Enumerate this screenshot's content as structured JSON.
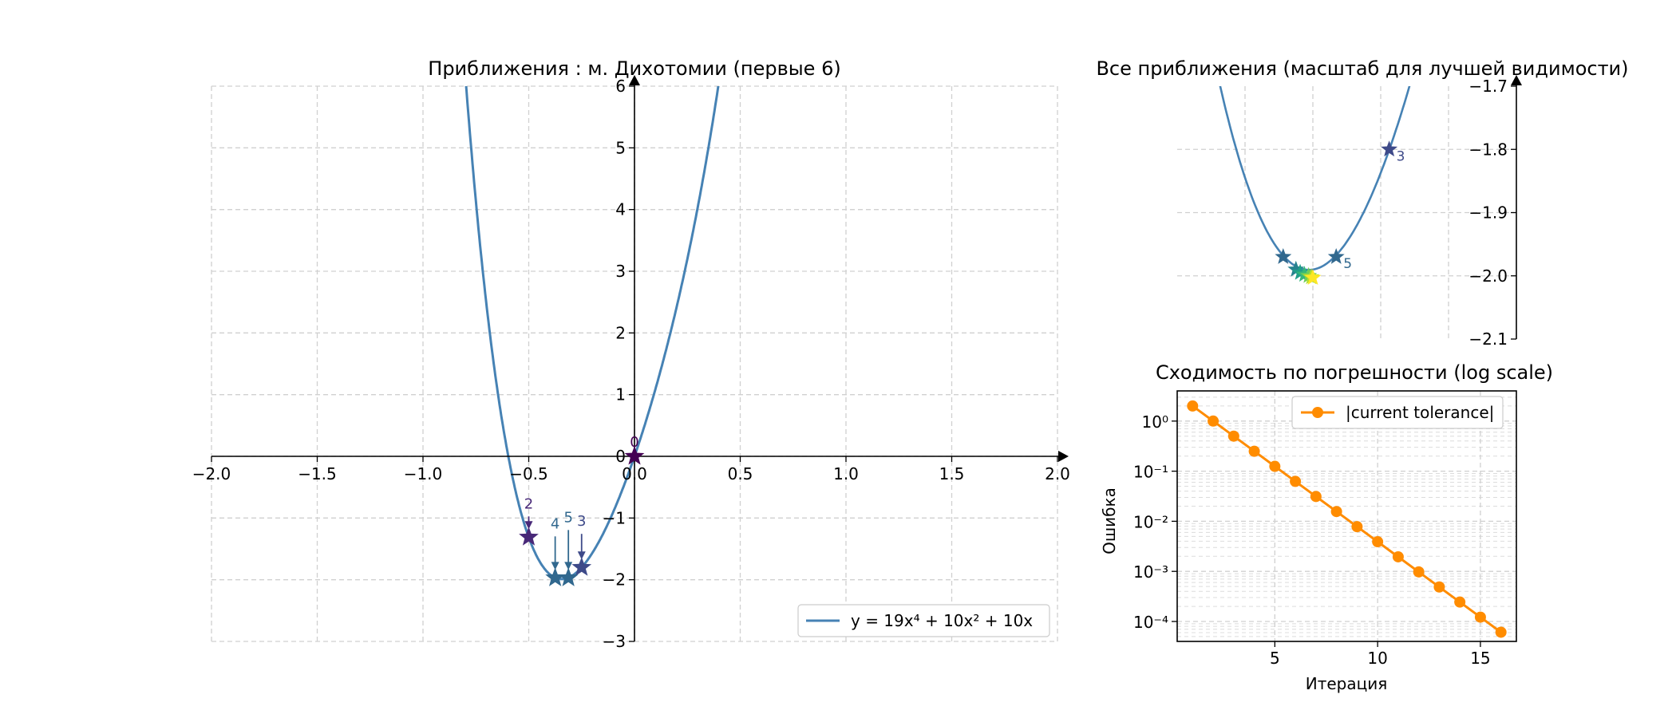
{
  "chart_data": [
    {
      "type": "line",
      "title": "Приближения : м. Дихотомии (первые 6)",
      "xlim": [
        -2.0,
        2.0
      ],
      "ylim": [
        -3,
        6
      ],
      "xticks": [
        "−2.0",
        "−1.5",
        "−1.0",
        "−0.5",
        "0.0",
        "0.5",
        "1.0",
        "1.5",
        "2.0"
      ],
      "yticks": [
        "−3",
        "−2",
        "−1",
        "0",
        "1",
        "2",
        "3",
        "4",
        "5",
        "6"
      ],
      "grid": true,
      "curve": {
        "name": "y = 19x⁴ + 10x² + 10x",
        "color": "#4682b4",
        "coeffs": {
          "x4": 19,
          "x2": 10,
          "x1": 10
        }
      },
      "legend": {
        "placement": "lower-right",
        "label": "y = 19x⁴ + 10x² + 10x"
      },
      "points": [
        {
          "label": "0",
          "x": 0.0,
          "y": 0.0,
          "color": "#440154",
          "arrow": false
        },
        {
          "label": "2",
          "x": -0.5,
          "y": -1.31,
          "color": "#482878",
          "arrow": true
        },
        {
          "label": "3",
          "x": -0.25,
          "y": -1.8,
          "color": "#3e4a89",
          "arrow": true
        },
        {
          "label": "4",
          "x": -0.375,
          "y": -1.97,
          "color": "#31688e",
          "arrow": true
        },
        {
          "label": "5",
          "x": -0.3125,
          "y": -1.97,
          "color": "#31688e",
          "arrow": true
        }
      ]
    },
    {
      "type": "line",
      "title": "Все приближения (масштаб для лучшей видимости)",
      "ylim": [
        -2.1,
        -1.7
      ],
      "yticks": [
        "−1.7",
        "−1.8",
        "−1.9",
        "−2.0",
        "−2.1"
      ],
      "grid": true,
      "curve": {
        "color": "#4682b4"
      },
      "points": [
        {
          "label": "3",
          "x": -0.25,
          "y": -1.8,
          "color": "#3e4a89"
        },
        {
          "label": "5",
          "x": -0.3125,
          "y": -1.97,
          "color": "#31688e"
        },
        {
          "label": "",
          "x": -0.375,
          "y": -1.97,
          "color": "#31688e"
        },
        {
          "label": "",
          "x": -0.36,
          "y": -1.99,
          "color": "#26828e"
        },
        {
          "label": "",
          "x": -0.355,
          "y": -1.995,
          "color": "#1f9e89"
        },
        {
          "label": "",
          "x": -0.35,
          "y": -1.998,
          "color": "#35b779"
        },
        {
          "label": "",
          "x": -0.345,
          "y": -2.0,
          "color": "#6ece58"
        },
        {
          "label": "",
          "x": -0.342,
          "y": -2.002,
          "color": "#b5de2b"
        },
        {
          "label": "",
          "x": -0.34,
          "y": -2.003,
          "color": "#fde725"
        }
      ]
    },
    {
      "type": "line",
      "title": "Сходимость по погрешности (log scale)",
      "xlabel": "Итерация",
      "ylabel": "Ошибка",
      "yscale": "log",
      "xticks": [
        "5",
        "10",
        "15"
      ],
      "yticks": [
        "10⁰",
        "10⁻¹",
        "10⁻²",
        "10⁻³",
        "10⁻⁴"
      ],
      "grid": true,
      "legend": {
        "placement": "upper-right",
        "label": "|current tolerance|"
      },
      "series": [
        {
          "name": "|current tolerance|",
          "color": "#ff8c00",
          "x": [
            1,
            2,
            3,
            4,
            5,
            6,
            7,
            8,
            9,
            10,
            11,
            12,
            13,
            14,
            15,
            16
          ],
          "values": [
            2.0,
            1.0,
            0.5,
            0.25,
            0.125,
            0.0625,
            0.03125,
            0.015625,
            0.0078125,
            0.00390625,
            0.001953125,
            0.0009765625,
            0.00048828125,
            0.000244140625,
            0.0001220703125,
            6.103515625e-05
          ]
        }
      ]
    }
  ]
}
